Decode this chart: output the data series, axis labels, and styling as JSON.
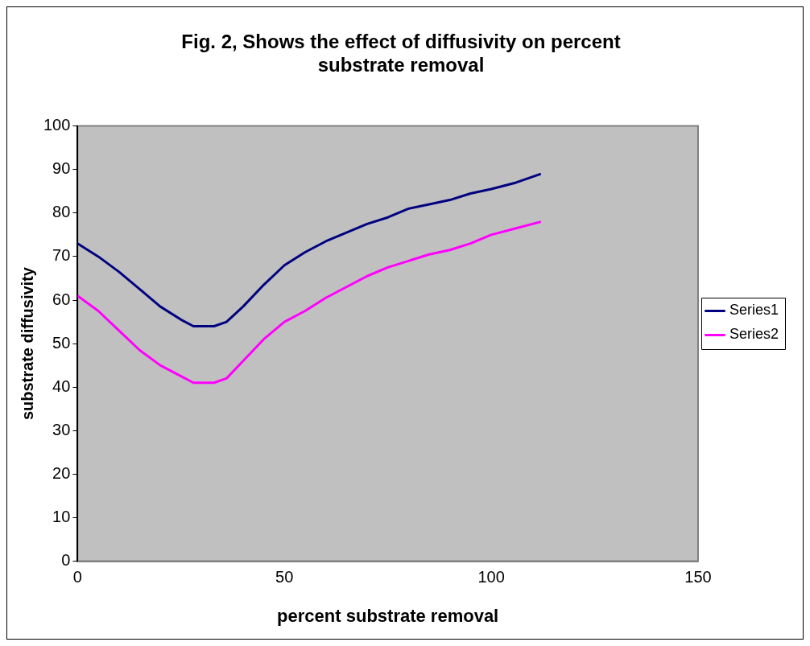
{
  "chart_data": {
    "type": "line",
    "title": "Fig. 2, Shows the effect of diffusivity on percent substrate removal",
    "xlabel": "percent substrate removal",
    "ylabel": "substrate diffusivity",
    "x": [
      0,
      5,
      10,
      15,
      20,
      25,
      28,
      33,
      36,
      40,
      45,
      50,
      55,
      60,
      65,
      70,
      75,
      80,
      85,
      90,
      95,
      100,
      106,
      112
    ],
    "series": [
      {
        "name": "Series1",
        "color": "#000080",
        "values": [
          73,
          70,
          66.5,
          62.5,
          58.5,
          55.5,
          54,
          54,
          55,
          58.5,
          63.5,
          68,
          71,
          73.5,
          75.5,
          77.5,
          79,
          81,
          82,
          83,
          84.5,
          85.5,
          87,
          89
        ]
      },
      {
        "name": "Series2",
        "color": "#ff00ff",
        "values": [
          61,
          57.5,
          53,
          48.5,
          45,
          42.5,
          41,
          41,
          42,
          46,
          51,
          55,
          57.5,
          60.5,
          63,
          65.5,
          67.5,
          69,
          70.5,
          71.5,
          73,
          75,
          76.5,
          78
        ]
      }
    ],
    "xlim": [
      0,
      150
    ],
    "xticks": [
      0,
      50,
      100,
      150
    ],
    "ylim": [
      0,
      100
    ],
    "yticks": [
      0,
      10,
      20,
      30,
      40,
      50,
      60,
      70,
      80,
      90,
      100
    ],
    "grid": false,
    "legend": "right",
    "marker": "none",
    "line_style": "solid"
  }
}
